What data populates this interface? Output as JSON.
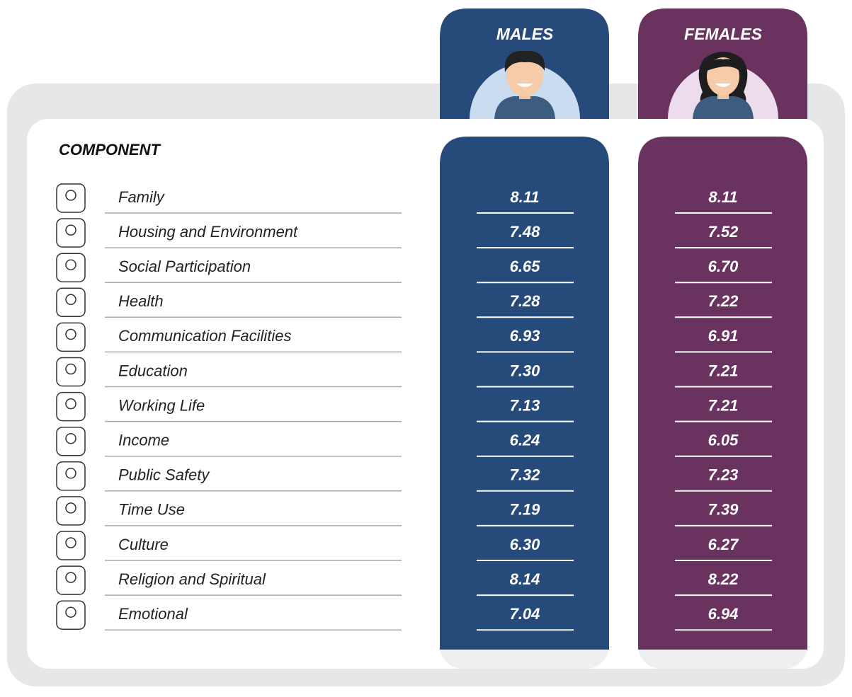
{
  "header": {
    "component": "COMPONENT",
    "males": "MALES",
    "females": "FEMALES"
  },
  "table": {
    "rows": [
      [
        "Family",
        "8.11",
        "8.11"
      ],
      [
        "Housing and Environment",
        "7.48",
        "7.52"
      ],
      [
        "Social Participation",
        "6.65",
        "6.70"
      ],
      [
        "Health",
        "7.28",
        "7.22"
      ],
      [
        "Communication Facilities",
        "6.93",
        "6.91"
      ],
      [
        "Education",
        "7.30",
        "7.21"
      ],
      [
        "Working Life",
        "7.13",
        "7.21"
      ],
      [
        "Income",
        "6.24",
        "6.05"
      ],
      [
        "Public Safety",
        "7.32",
        "7.23"
      ],
      [
        "Time Use",
        "7.19",
        "7.39"
      ],
      [
        "Culture",
        "6.30",
        "6.27"
      ],
      [
        "Religion and Spiritual",
        "8.14",
        "8.22"
      ],
      [
        "Emotional",
        "7.04",
        "6.94"
      ]
    ]
  }
}
